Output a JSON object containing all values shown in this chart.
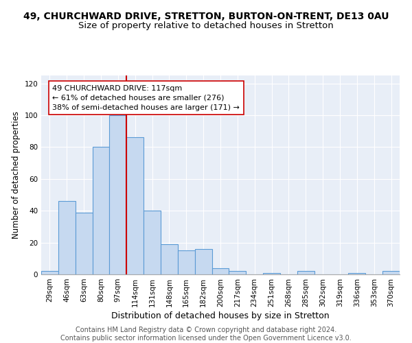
{
  "title": "49, CHURCHWARD DRIVE, STRETTON, BURTON-ON-TRENT, DE13 0AU",
  "subtitle": "Size of property relative to detached houses in Stretton",
  "xlabel": "Distribution of detached houses by size in Stretton",
  "ylabel": "Number of detached properties",
  "bin_labels": [
    "29sqm",
    "46sqm",
    "63sqm",
    "80sqm",
    "97sqm",
    "114sqm",
    "131sqm",
    "148sqm",
    "165sqm",
    "182sqm",
    "200sqm",
    "217sqm",
    "234sqm",
    "251sqm",
    "268sqm",
    "285sqm",
    "302sqm",
    "319sqm",
    "336sqm",
    "353sqm",
    "370sqm"
  ],
  "bar_heights": [
    2,
    46,
    39,
    80,
    100,
    86,
    40,
    19,
    15,
    16,
    4,
    2,
    0,
    1,
    0,
    2,
    0,
    0,
    1,
    0,
    2
  ],
  "bar_color": "#c6d9f0",
  "bar_edge_color": "#5b9bd5",
  "highlight_line_color": "#cc0000",
  "highlight_line_bin": 5,
  "annotation_text": "49 CHURCHWARD DRIVE: 117sqm\n← 61% of detached houses are smaller (276)\n38% of semi-detached houses are larger (171) →",
  "annotation_box_facecolor": "#ffffff",
  "annotation_box_edgecolor": "#cc0000",
  "ylim": [
    0,
    125
  ],
  "yticks": [
    0,
    20,
    40,
    60,
    80,
    100,
    120
  ],
  "footer_text": "Contains HM Land Registry data © Crown copyright and database right 2024.\nContains public sector information licensed under the Open Government Licence v3.0.",
  "title_fontsize": 10,
  "subtitle_fontsize": 9.5,
  "xlabel_fontsize": 9,
  "ylabel_fontsize": 8.5,
  "tick_fontsize": 7.5,
  "annotation_fontsize": 8,
  "footer_fontsize": 7,
  "bg_color": "#e8eef7"
}
